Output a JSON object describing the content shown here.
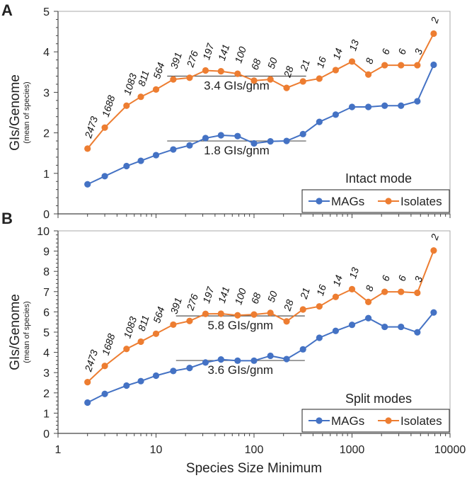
{
  "chart_data": [
    {
      "type": "line",
      "panel_letter": "A",
      "ylabel": "GIs/Genome",
      "ylabel_sub": "(mean of species)",
      "xlabel": "",
      "x_scale": "log",
      "xlim": [
        1,
        10000
      ],
      "ylim": [
        0,
        5
      ],
      "yticks": [
        "0",
        "1",
        "2",
        "3",
        "4",
        "5"
      ],
      "xticks": [],
      "mode_label": "Intact mode",
      "legend_placement": "bottom-right",
      "x": [
        2,
        3,
        5,
        7,
        10,
        15,
        22,
        32,
        46,
        68,
        100,
        147,
        215,
        316,
        464,
        681,
        1000,
        1468,
        2154,
        3162,
        4642,
        6813
      ],
      "point_labels": [
        "2473",
        "1688",
        "1083",
        "811",
        "564",
        "391",
        "276",
        "197",
        "141",
        "100",
        "68",
        "50",
        "28",
        "21",
        "16",
        "14",
        "13",
        "8",
        "6",
        "6",
        "3",
        "2"
      ],
      "series": [
        {
          "name": "MAGs",
          "color": "#4472C4",
          "values": [
            0.73,
            0.93,
            1.18,
            1.31,
            1.45,
            1.59,
            1.69,
            1.87,
            1.94,
            1.92,
            1.74,
            1.79,
            1.8,
            1.97,
            2.27,
            2.45,
            2.64,
            2.64,
            2.67,
            2.67,
            2.78,
            3.68
          ]
        },
        {
          "name": "Isolates",
          "color": "#ED7D31",
          "values": [
            1.61,
            2.13,
            2.67,
            2.89,
            3.07,
            3.32,
            3.36,
            3.54,
            3.52,
            3.46,
            3.29,
            3.32,
            3.11,
            3.27,
            3.34,
            3.55,
            3.76,
            3.44,
            3.67,
            3.67,
            3.67,
            4.45
          ]
        }
      ],
      "reference_lines": [
        {
          "label": "3.4 GIs/gnm",
          "y": 3.4,
          "x_range": [
            13,
            340
          ]
        },
        {
          "label": "1.8 GIs/gnm",
          "y": 1.8,
          "x_range": [
            13,
            340
          ]
        }
      ]
    },
    {
      "type": "line",
      "panel_letter": "B",
      "ylabel": "GIs/Genome",
      "ylabel_sub": "(mean of species)",
      "xlabel": "Species Size Minimum",
      "x_scale": "log",
      "xlim": [
        1,
        10000
      ],
      "ylim": [
        0,
        10
      ],
      "yticks": [
        "0",
        "1",
        "2",
        "3",
        "4",
        "5",
        "6",
        "7",
        "8",
        "9",
        "10"
      ],
      "xticks": [
        "1",
        "10",
        "100",
        "1000",
        "10000"
      ],
      "mode_label": "Split modes",
      "legend_placement": "bottom-right",
      "x": [
        2,
        3,
        5,
        7,
        10,
        15,
        22,
        32,
        46,
        68,
        100,
        147,
        215,
        316,
        464,
        681,
        1000,
        1468,
        2154,
        3162,
        4642,
        6813
      ],
      "point_labels": [
        "2473",
        "1688",
        "1083",
        "811",
        "564",
        "391",
        "276",
        "197",
        "141",
        "100",
        "68",
        "50",
        "28",
        "21",
        "16",
        "14",
        "13",
        "8",
        "6",
        "6",
        "3",
        "2"
      ],
      "series": [
        {
          "name": "MAGs",
          "color": "#4472C4",
          "values": [
            1.52,
            1.95,
            2.36,
            2.58,
            2.85,
            3.08,
            3.23,
            3.5,
            3.65,
            3.59,
            3.59,
            3.83,
            3.67,
            4.15,
            4.72,
            5.06,
            5.36,
            5.69,
            5.26,
            5.26,
            4.99,
            5.97
          ]
        },
        {
          "name": "Isolates",
          "color": "#ED7D31",
          "values": [
            2.53,
            3.33,
            4.17,
            4.53,
            4.92,
            5.37,
            5.55,
            5.9,
            5.91,
            5.83,
            5.87,
            5.95,
            5.53,
            6.12,
            6.27,
            6.74,
            7.12,
            6.49,
            6.99,
            6.99,
            6.94,
            9.03
          ]
        }
      ],
      "reference_lines": [
        {
          "label": "5.8 GIs/gnm",
          "y": 5.8,
          "x_range": [
            16,
            330
          ]
        },
        {
          "label": "3.6 GIs/gnm",
          "y": 3.6,
          "x_range": [
            16,
            330
          ]
        }
      ]
    }
  ]
}
